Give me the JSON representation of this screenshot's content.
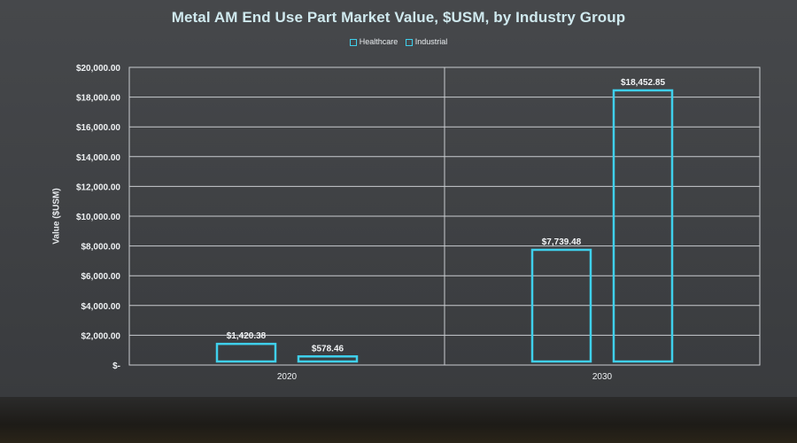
{
  "chart_data": {
    "type": "bar",
    "title": "Metal AM End Use Part Market Value, $USM, by Industry Group",
    "ylabel": "Value ($USM)",
    "xlabel": "",
    "categories": [
      "2020",
      "2030"
    ],
    "series": [
      {
        "name": "Healthcare",
        "values": [
          1420.38,
          7739.48
        ],
        "labels": [
          "$1,420.38",
          "$7,739.48"
        ]
      },
      {
        "name": "Industrial",
        "values": [
          578.46,
          18452.85
        ],
        "labels": [
          "$578.46",
          "$18,452.85"
        ]
      }
    ],
    "ylim": [
      0,
      20000
    ],
    "y_ticks": [
      0,
      2000,
      4000,
      6000,
      8000,
      10000,
      12000,
      14000,
      16000,
      18000,
      20000
    ],
    "y_tick_labels": [
      "$-",
      "$2,000.00",
      "$4,000.00",
      "$6,000.00",
      "$8,000.00",
      "$10,000.00",
      "$12,000.00",
      "$14,000.00",
      "$16,000.00",
      "$18,000.00",
      "$20,000.00"
    ],
    "grid": true,
    "legend_position": "top",
    "bar_style": "outline",
    "colors": {
      "bar_outline": "#3fd0ec",
      "grid": "#c9ccd0",
      "text": "#eef1f3",
      "title": "#cfe9ee"
    }
  }
}
